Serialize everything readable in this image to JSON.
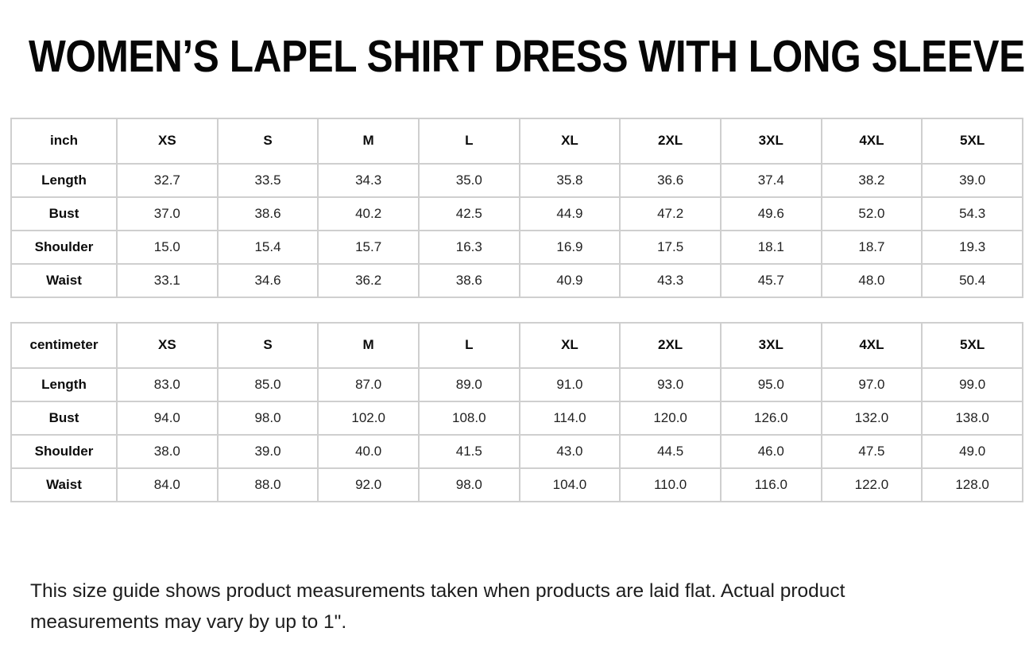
{
  "title": "WOMEN’S LAPEL SHIRT DRESS WITH LONG SLEEVE",
  "tables": [
    {
      "unit_label": "inch",
      "columns": [
        "XS",
        "S",
        "M",
        "L",
        "XL",
        "2XL",
        "3XL",
        "4XL",
        "5XL"
      ],
      "rows": [
        {
          "label": "Length",
          "values": [
            "32.7",
            "33.5",
            "34.3",
            "35.0",
            "35.8",
            "36.6",
            "37.4",
            "38.2",
            "39.0"
          ]
        },
        {
          "label": "Bust",
          "values": [
            "37.0",
            "38.6",
            "40.2",
            "42.5",
            "44.9",
            "47.2",
            "49.6",
            "52.0",
            "54.3"
          ]
        },
        {
          "label": "Shoulder",
          "values": [
            "15.0",
            "15.4",
            "15.7",
            "16.3",
            "16.9",
            "17.5",
            "18.1",
            "18.7",
            "19.3"
          ]
        },
        {
          "label": "Waist",
          "values": [
            "33.1",
            "34.6",
            "36.2",
            "38.6",
            "40.9",
            "43.3",
            "45.7",
            "48.0",
            "50.4"
          ]
        }
      ]
    },
    {
      "unit_label": "centimeter",
      "columns": [
        "XS",
        "S",
        "M",
        "L",
        "XL",
        "2XL",
        "3XL",
        "4XL",
        "5XL"
      ],
      "rows": [
        {
          "label": "Length",
          "values": [
            "83.0",
            "85.0",
            "87.0",
            "89.0",
            "91.0",
            "93.0",
            "95.0",
            "97.0",
            "99.0"
          ]
        },
        {
          "label": "Bust",
          "values": [
            "94.0",
            "98.0",
            "102.0",
            "108.0",
            "114.0",
            "120.0",
            "126.0",
            "132.0",
            "138.0"
          ]
        },
        {
          "label": "Shoulder",
          "values": [
            "38.0",
            "39.0",
            "40.0",
            "41.5",
            "43.0",
            "44.5",
            "46.0",
            "47.5",
            "49.0"
          ]
        },
        {
          "label": "Waist",
          "values": [
            "84.0",
            "88.0",
            "92.0",
            "98.0",
            "104.0",
            "110.0",
            "116.0",
            "122.0",
            "128.0"
          ]
        }
      ]
    }
  ],
  "footer_note": "This size guide shows product measurements taken when products are laid flat. Actual product measurements may vary by up to 1\".",
  "colors": {
    "border": "#cfcfcf",
    "text": "#111111",
    "background": "#ffffff"
  }
}
